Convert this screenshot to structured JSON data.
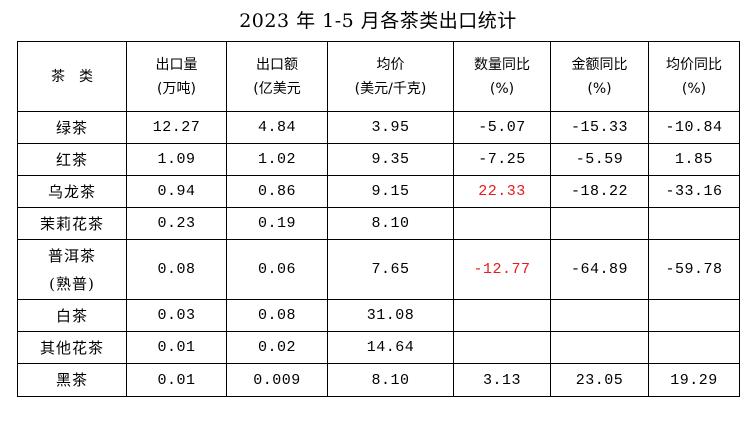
{
  "title": "2023 年 1-5 月各茶类出口统计",
  "header": {
    "c0": [
      "茶　类"
    ],
    "c1": [
      "出口量",
      "(万吨)"
    ],
    "c2": [
      "出口额",
      "(亿美元"
    ],
    "c3": [
      "均价",
      "(美元/千克)"
    ],
    "c4": [
      "数量同比",
      "(%)"
    ],
    "c5": [
      "金额同比",
      "(%)"
    ],
    "c6": [
      "均价同比",
      "(%)"
    ]
  },
  "highlight_color": "#e8191f",
  "rows": [
    {
      "name": [
        "绿茶"
      ],
      "volume": "12.27",
      "value": "4.84",
      "price": "3.95",
      "qty_yoy": "-5.07",
      "amt_yoy": "-15.33",
      "price_yoy": "-10.84"
    },
    {
      "name": [
        "红茶"
      ],
      "volume": "1.09",
      "value": "1.02",
      "price": "9.35",
      "qty_yoy": "-7.25",
      "amt_yoy": "-5.59",
      "price_yoy": "1.85"
    },
    {
      "name": [
        "乌龙茶"
      ],
      "volume": "0.94",
      "value": "0.86",
      "price": "9.15",
      "qty_yoy": "22.33",
      "amt_yoy": "-18.22",
      "price_yoy": "-33.16"
    },
    {
      "name": [
        "茉莉花茶"
      ],
      "volume": "0.23",
      "value": "0.19",
      "price": "8.10",
      "qty_yoy": "",
      "amt_yoy": "",
      "price_yoy": ""
    },
    {
      "name": [
        "普洱茶",
        "(熟普)"
      ],
      "volume": "0.08",
      "value": "0.06",
      "price": "7.65",
      "qty_yoy": "-12.77",
      "amt_yoy": "-64.89",
      "price_yoy": "-59.78"
    },
    {
      "name": [
        "白茶"
      ],
      "volume": "0.03",
      "value": "0.08",
      "price": "31.08",
      "qty_yoy": "",
      "amt_yoy": "",
      "price_yoy": ""
    },
    {
      "name": [
        "其他花茶"
      ],
      "volume": "0.01",
      "value": "0.02",
      "price": "14.64",
      "qty_yoy": "",
      "amt_yoy": "",
      "price_yoy": ""
    },
    {
      "name": [
        "黑茶"
      ],
      "volume": "0.01",
      "value": "0.009",
      "price": "8.10",
      "qty_yoy": "3.13",
      "amt_yoy": "23.05",
      "price_yoy": "19.29"
    }
  ]
}
